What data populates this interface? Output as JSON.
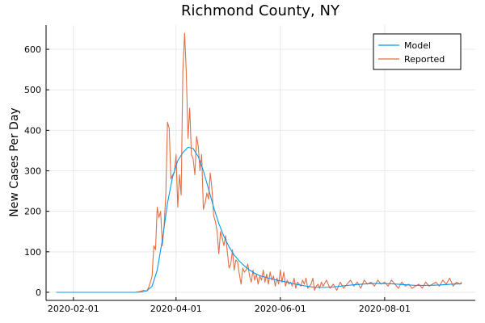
{
  "chart_data": {
    "type": "line",
    "title": "Richmond County, NY",
    "xlabel": "",
    "ylabel": "New Cases Per Day",
    "x_ticks": [
      "2020-02-01",
      "2020-04-01",
      "2020-06-01",
      "2020-08-01"
    ],
    "y_ticks": [
      0,
      100,
      200,
      300,
      400,
      500,
      600
    ],
    "ylim": [
      -20,
      660
    ],
    "xlim": [
      "2020-01-16",
      "2020-09-23"
    ],
    "grid": true,
    "legend_position": "top-right",
    "series": [
      {
        "name": "Model",
        "color": "#009AFA",
        "points": [
          [
            "2020-01-22",
            0
          ],
          [
            "2020-02-15",
            0
          ],
          [
            "2020-03-01",
            0
          ],
          [
            "2020-03-08",
            0
          ],
          [
            "2020-03-12",
            1
          ],
          [
            "2020-03-15",
            4
          ],
          [
            "2020-03-18",
            15
          ],
          [
            "2020-03-21",
            55
          ],
          [
            "2020-03-24",
            130
          ],
          [
            "2020-03-27",
            220
          ],
          [
            "2020-03-30",
            285
          ],
          [
            "2020-04-02",
            325
          ],
          [
            "2020-04-05",
            345
          ],
          [
            "2020-04-08",
            358
          ],
          [
            "2020-04-11",
            355
          ],
          [
            "2020-04-14",
            335
          ],
          [
            "2020-04-17",
            300
          ],
          [
            "2020-04-20",
            255
          ],
          [
            "2020-04-23",
            210
          ],
          [
            "2020-04-26",
            170
          ],
          [
            "2020-04-29",
            138
          ],
          [
            "2020-05-02",
            112
          ],
          [
            "2020-05-05",
            92
          ],
          [
            "2020-05-08",
            77
          ],
          [
            "2020-05-11",
            65
          ],
          [
            "2020-05-14",
            55
          ],
          [
            "2020-05-17",
            47
          ],
          [
            "2020-05-20",
            41
          ],
          [
            "2020-05-25",
            35
          ],
          [
            "2020-05-30",
            30
          ],
          [
            "2020-06-05",
            25
          ],
          [
            "2020-06-10",
            20
          ],
          [
            "2020-06-15",
            16
          ],
          [
            "2020-06-20",
            13
          ],
          [
            "2020-06-25",
            12
          ],
          [
            "2020-07-01",
            13
          ],
          [
            "2020-07-08",
            16
          ],
          [
            "2020-07-15",
            19
          ],
          [
            "2020-07-22",
            21
          ],
          [
            "2020-07-29",
            22
          ],
          [
            "2020-08-05",
            21
          ],
          [
            "2020-08-12",
            19
          ],
          [
            "2020-08-19",
            17
          ],
          [
            "2020-08-26",
            17
          ],
          [
            "2020-09-02",
            18
          ],
          [
            "2020-09-09",
            20
          ],
          [
            "2020-09-15",
            21
          ]
        ]
      },
      {
        "name": "Reported",
        "color": "#E26F46",
        "points": [
          [
            "2020-01-22",
            0
          ],
          [
            "2020-03-08",
            0
          ],
          [
            "2020-03-11",
            2
          ],
          [
            "2020-03-13",
            5
          ],
          [
            "2020-03-15",
            3
          ],
          [
            "2020-03-16",
            12
          ],
          [
            "2020-03-17",
            25
          ],
          [
            "2020-03-18",
            40
          ],
          [
            "2020-03-19",
            115
          ],
          [
            "2020-03-20",
            105
          ],
          [
            "2020-03-21",
            210
          ],
          [
            "2020-03-22",
            185
          ],
          [
            "2020-03-23",
            200
          ],
          [
            "2020-03-24",
            115
          ],
          [
            "2020-03-25",
            165
          ],
          [
            "2020-03-26",
            240
          ],
          [
            "2020-03-27",
            420
          ],
          [
            "2020-03-28",
            405
          ],
          [
            "2020-03-29",
            280
          ],
          [
            "2020-03-30",
            290
          ],
          [
            "2020-03-31",
            295
          ],
          [
            "2020-04-01",
            340
          ],
          [
            "2020-04-02",
            210
          ],
          [
            "2020-04-03",
            290
          ],
          [
            "2020-04-04",
            240
          ],
          [
            "2020-04-05",
            545
          ],
          [
            "2020-04-06",
            640
          ],
          [
            "2020-04-07",
            540
          ],
          [
            "2020-04-08",
            380
          ],
          [
            "2020-04-09",
            455
          ],
          [
            "2020-04-10",
            340
          ],
          [
            "2020-04-11",
            330
          ],
          [
            "2020-04-12",
            290
          ],
          [
            "2020-04-13",
            385
          ],
          [
            "2020-04-14",
            360
          ],
          [
            "2020-04-15",
            300
          ],
          [
            "2020-04-16",
            340
          ],
          [
            "2020-04-17",
            205
          ],
          [
            "2020-04-18",
            220
          ],
          [
            "2020-04-19",
            245
          ],
          [
            "2020-04-20",
            230
          ],
          [
            "2020-04-21",
            295
          ],
          [
            "2020-04-22",
            255
          ],
          [
            "2020-04-23",
            190
          ],
          [
            "2020-04-24",
            175
          ],
          [
            "2020-04-25",
            150
          ],
          [
            "2020-04-26",
            95
          ],
          [
            "2020-04-27",
            150
          ],
          [
            "2020-04-28",
            135
          ],
          [
            "2020-04-29",
            115
          ],
          [
            "2020-04-30",
            140
          ],
          [
            "2020-05-01",
            100
          ],
          [
            "2020-05-02",
            60
          ],
          [
            "2020-05-03",
            70
          ],
          [
            "2020-05-04",
            105
          ],
          [
            "2020-05-05",
            55
          ],
          [
            "2020-05-06",
            80
          ],
          [
            "2020-05-07",
            75
          ],
          [
            "2020-05-08",
            45
          ],
          [
            "2020-05-09",
            20
          ],
          [
            "2020-05-10",
            60
          ],
          [
            "2020-05-11",
            50
          ],
          [
            "2020-05-12",
            55
          ],
          [
            "2020-05-13",
            70
          ],
          [
            "2020-05-14",
            40
          ],
          [
            "2020-05-15",
            25
          ],
          [
            "2020-05-16",
            55
          ],
          [
            "2020-05-17",
            30
          ],
          [
            "2020-05-18",
            45
          ],
          [
            "2020-05-19",
            20
          ],
          [
            "2020-05-20",
            40
          ],
          [
            "2020-05-21",
            30
          ],
          [
            "2020-05-22",
            55
          ],
          [
            "2020-05-23",
            25
          ],
          [
            "2020-05-24",
            45
          ],
          [
            "2020-05-25",
            20
          ],
          [
            "2020-05-26",
            50
          ],
          [
            "2020-05-27",
            30
          ],
          [
            "2020-05-28",
            40
          ],
          [
            "2020-05-29",
            15
          ],
          [
            "2020-05-30",
            35
          ],
          [
            "2020-05-31",
            20
          ],
          [
            "2020-06-01",
            55
          ],
          [
            "2020-06-02",
            25
          ],
          [
            "2020-06-03",
            50
          ],
          [
            "2020-06-04",
            15
          ],
          [
            "2020-06-05",
            30
          ],
          [
            "2020-06-06",
            20
          ],
          [
            "2020-06-07",
            25
          ],
          [
            "2020-06-08",
            15
          ],
          [
            "2020-06-09",
            35
          ],
          [
            "2020-06-10",
            10
          ],
          [
            "2020-06-11",
            25
          ],
          [
            "2020-06-12",
            20
          ],
          [
            "2020-06-13",
            15
          ],
          [
            "2020-06-14",
            30
          ],
          [
            "2020-06-15",
            20
          ],
          [
            "2020-06-16",
            35
          ],
          [
            "2020-06-17",
            10
          ],
          [
            "2020-06-18",
            15
          ],
          [
            "2020-06-19",
            20
          ],
          [
            "2020-06-20",
            35
          ],
          [
            "2020-06-21",
            5
          ],
          [
            "2020-06-22",
            15
          ],
          [
            "2020-06-23",
            20
          ],
          [
            "2020-06-24",
            10
          ],
          [
            "2020-06-25",
            25
          ],
          [
            "2020-06-26",
            15
          ],
          [
            "2020-06-28",
            30
          ],
          [
            "2020-06-30",
            10
          ],
          [
            "2020-07-02",
            20
          ],
          [
            "2020-07-04",
            5
          ],
          [
            "2020-07-06",
            25
          ],
          [
            "2020-07-08",
            10
          ],
          [
            "2020-07-10",
            20
          ],
          [
            "2020-07-12",
            30
          ],
          [
            "2020-07-14",
            15
          ],
          [
            "2020-07-16",
            25
          ],
          [
            "2020-07-18",
            10
          ],
          [
            "2020-07-20",
            30
          ],
          [
            "2020-07-22",
            20
          ],
          [
            "2020-07-24",
            25
          ],
          [
            "2020-07-26",
            15
          ],
          [
            "2020-07-28",
            30
          ],
          [
            "2020-07-30",
            20
          ],
          [
            "2020-08-01",
            25
          ],
          [
            "2020-08-03",
            15
          ],
          [
            "2020-08-05",
            30
          ],
          [
            "2020-08-07",
            20
          ],
          [
            "2020-08-09",
            10
          ],
          [
            "2020-08-11",
            25
          ],
          [
            "2020-08-13",
            15
          ],
          [
            "2020-08-15",
            20
          ],
          [
            "2020-08-17",
            10
          ],
          [
            "2020-08-19",
            15
          ],
          [
            "2020-08-21",
            20
          ],
          [
            "2020-08-23",
            10
          ],
          [
            "2020-08-25",
            25
          ],
          [
            "2020-08-27",
            15
          ],
          [
            "2020-08-29",
            20
          ],
          [
            "2020-08-31",
            25
          ],
          [
            "2020-09-02",
            15
          ],
          [
            "2020-09-04",
            30
          ],
          [
            "2020-09-06",
            20
          ],
          [
            "2020-09-08",
            35
          ],
          [
            "2020-09-10",
            15
          ],
          [
            "2020-09-12",
            25
          ],
          [
            "2020-09-14",
            20
          ],
          [
            "2020-09-15",
            25
          ]
        ]
      }
    ]
  }
}
